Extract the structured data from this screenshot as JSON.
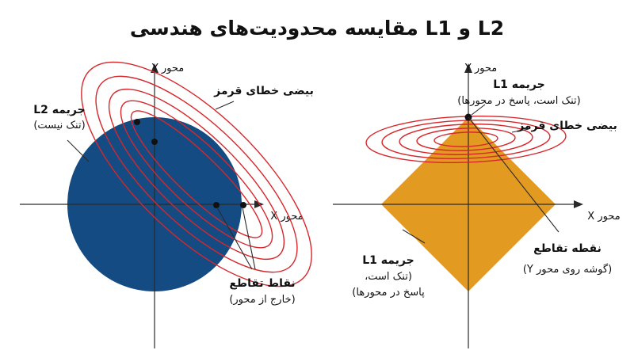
{
  "title": "مقایسه محدودیت‌های هندسی L1 و L2",
  "colors": {
    "l2_region": "#144b82",
    "l1_region": "#e29a21",
    "contour": "#d8262b",
    "axis": "#2a2a2a",
    "text": "#111111"
  },
  "left_panel": {
    "axis_y_label": "محور Y",
    "axis_x_label": "محور X",
    "contour_label": "بیضی خطای قرمز",
    "penalty_label": "جریمه L2",
    "penalty_note": "(تنک نیست)",
    "intersection_label": "نقاط تقاطع",
    "intersection_note": "(خارج از محور)"
  },
  "right_panel": {
    "axis_y_label": "محور Y",
    "axis_x_label": "محور X",
    "contour_label": "بیضی خطای قرمز",
    "penalty_top_label": "جریمه L1",
    "penalty_top_note": "(تنک است، پاسخ در محورها)",
    "penalty_bottom_label": "جریمه L1",
    "penalty_bottom_note_1": "(تنک است،",
    "penalty_bottom_note_2": "پاسخ در محورها)",
    "intersection_label": "نقطه تقاطع",
    "intersection_note": "(گوشه روی محور Y)"
  }
}
